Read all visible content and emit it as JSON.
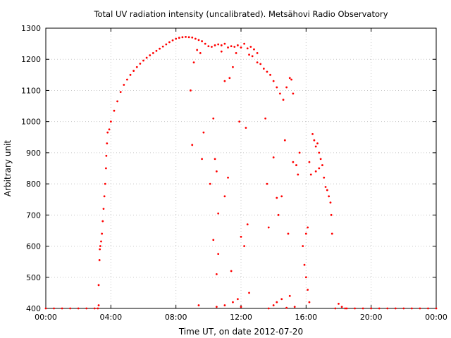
{
  "chart_data": {
    "type": "scatter",
    "title": "Total UV radiation intensity (uncalibrated). Metsähovi Radio Observatory",
    "xlabel": "Time UT, on date 2012-07-20",
    "ylabel": "Arbitrary unit",
    "xlim": [
      0,
      24
    ],
    "ylim": [
      400,
      1300
    ],
    "x_unit": "hours UT",
    "xticks": [
      0,
      4,
      8,
      12,
      16,
      20,
      24
    ],
    "xtick_labels": [
      "00:00",
      "04:00",
      "08:00",
      "12:00",
      "16:00",
      "20:00",
      "00:00"
    ],
    "yticks": [
      400,
      500,
      600,
      700,
      800,
      900,
      1000,
      1100,
      1200,
      1300
    ],
    "ytick_labels": [
      "400",
      "500",
      "600",
      "700",
      "800",
      "900",
      "1000",
      "1100",
      "1200",
      "1300"
    ],
    "grid": true,
    "legend": "none",
    "marker_color": "#ff0000",
    "series": [
      {
        "points": [
          [
            0.0,
            400
          ],
          [
            0.5,
            400
          ],
          [
            1.0,
            400
          ],
          [
            1.5,
            400
          ],
          [
            2.0,
            400
          ],
          [
            2.5,
            400
          ],
          [
            3.0,
            400
          ],
          [
            3.2,
            400
          ],
          [
            3.25,
            410
          ],
          [
            3.25,
            475
          ],
          [
            3.3,
            555
          ],
          [
            3.32,
            590
          ],
          [
            3.35,
            600
          ],
          [
            3.4,
            615
          ],
          [
            3.45,
            640
          ],
          [
            3.5,
            680
          ],
          [
            3.55,
            720
          ],
          [
            3.6,
            760
          ],
          [
            3.65,
            800
          ],
          [
            3.7,
            850
          ],
          [
            3.72,
            890
          ],
          [
            3.76,
            930
          ],
          [
            3.8,
            965
          ],
          [
            3.9,
            975
          ],
          [
            4.0,
            1000
          ],
          [
            4.2,
            1035
          ],
          [
            4.4,
            1065
          ],
          [
            4.6,
            1095
          ],
          [
            4.8,
            1118
          ],
          [
            5.0,
            1135
          ],
          [
            5.2,
            1150
          ],
          [
            5.4,
            1163
          ],
          [
            5.6,
            1175
          ],
          [
            5.8,
            1186
          ],
          [
            6.0,
            1196
          ],
          [
            6.2,
            1205
          ],
          [
            6.4,
            1213
          ],
          [
            6.6,
            1220
          ],
          [
            6.8,
            1227
          ],
          [
            7.0,
            1234
          ],
          [
            7.2,
            1241
          ],
          [
            7.4,
            1248
          ],
          [
            7.6,
            1255
          ],
          [
            7.8,
            1261
          ],
          [
            8.0,
            1266
          ],
          [
            8.2,
            1269
          ],
          [
            8.4,
            1271
          ],
          [
            8.6,
            1272
          ],
          [
            8.8,
            1271
          ],
          [
            9.0,
            1270
          ],
          [
            9.2,
            1266
          ],
          [
            9.4,
            1262
          ],
          [
            9.6,
            1258
          ],
          [
            9.8,
            1250
          ],
          [
            10.0,
            1242
          ],
          [
            10.2,
            1240
          ],
          [
            10.4,
            1245
          ],
          [
            10.6,
            1248
          ],
          [
            10.8,
            1245
          ],
          [
            11.0,
            1250
          ],
          [
            11.2,
            1238
          ],
          [
            11.4,
            1242
          ],
          [
            11.6,
            1240
          ],
          [
            11.8,
            1245
          ],
          [
            12.0,
            1238
          ],
          [
            12.2,
            1250
          ],
          [
            12.4,
            1235
          ],
          [
            12.6,
            1240
          ],
          [
            12.8,
            1232
          ],
          [
            13.0,
            1220
          ],
          [
            13.2,
            1185
          ],
          [
            13.4,
            1170
          ],
          [
            13.6,
            1160
          ],
          [
            13.8,
            1150
          ],
          [
            14.0,
            1130
          ],
          [
            14.2,
            1110
          ],
          [
            14.4,
            1090
          ],
          [
            14.6,
            1070
          ],
          [
            14.8,
            1110
          ],
          [
            15.0,
            1140
          ],
          [
            15.1,
            1135
          ],
          [
            15.2,
            1090
          ],
          [
            16.4,
            960
          ],
          [
            16.5,
            940
          ],
          [
            16.6,
            920
          ],
          [
            16.7,
            930
          ],
          [
            16.8,
            900
          ],
          [
            16.9,
            880
          ],
          [
            17.0,
            860
          ],
          [
            17.1,
            820
          ],
          [
            17.2,
            790
          ],
          [
            17.3,
            780
          ],
          [
            17.4,
            760
          ],
          [
            17.5,
            740
          ],
          [
            17.55,
            700
          ],
          [
            17.6,
            640
          ],
          [
            8.9,
            1100
          ],
          [
            9.1,
            1190
          ],
          [
            9.3,
            1230
          ],
          [
            9.5,
            1220
          ],
          [
            9.6,
            880
          ],
          [
            9.7,
            965
          ],
          [
            10.3,
            1010
          ],
          [
            10.4,
            880
          ],
          [
            10.5,
            840
          ],
          [
            10.6,
            705
          ],
          [
            10.6,
            575
          ],
          [
            10.8,
            1225
          ],
          [
            11.0,
            1130
          ],
          [
            11.3,
            1140
          ],
          [
            11.5,
            1175
          ],
          [
            11.7,
            1220
          ],
          [
            11.9,
            1000
          ],
          [
            12.3,
            980
          ],
          [
            12.5,
            1215
          ],
          [
            12.7,
            1210
          ],
          [
            13.0,
            1190
          ],
          [
            13.5,
            1010
          ],
          [
            13.6,
            800
          ],
          [
            13.7,
            660
          ],
          [
            14.0,
            885
          ],
          [
            14.2,
            755
          ],
          [
            14.3,
            700
          ],
          [
            14.5,
            760
          ],
          [
            14.7,
            940
          ],
          [
            14.9,
            640
          ],
          [
            15.2,
            870
          ],
          [
            15.4,
            860
          ],
          [
            15.5,
            830
          ],
          [
            15.6,
            900
          ],
          [
            15.8,
            600
          ],
          [
            16.0,
            640
          ],
          [
            16.1,
            660
          ],
          [
            16.2,
            870
          ],
          [
            16.3,
            830
          ],
          [
            16.6,
            840
          ],
          [
            16.8,
            850
          ],
          [
            9.0,
            925
          ],
          [
            9.4,
            410
          ],
          [
            10.1,
            800
          ],
          [
            10.3,
            620
          ],
          [
            10.5,
            510
          ],
          [
            11.0,
            760
          ],
          [
            11.2,
            820
          ],
          [
            11.4,
            520
          ],
          [
            11.5,
            420
          ],
          [
            11.8,
            430
          ],
          [
            12.0,
            630
          ],
          [
            12.2,
            600
          ],
          [
            12.4,
            670
          ],
          [
            12.5,
            450
          ],
          [
            13.7,
            400
          ],
          [
            14.0,
            410
          ],
          [
            14.2,
            420
          ],
          [
            14.5,
            430
          ],
          [
            15.0,
            440
          ],
          [
            15.9,
            540
          ],
          [
            16.0,
            500
          ],
          [
            16.1,
            460
          ],
          [
            16.2,
            420
          ],
          [
            10.5,
            405
          ],
          [
            11.0,
            410
          ],
          [
            12.0,
            405
          ],
          [
            14.8,
            402
          ],
          [
            15.3,
            405
          ],
          [
            17.8,
            400
          ],
          [
            18.0,
            415
          ],
          [
            18.2,
            405
          ],
          [
            18.4,
            400
          ],
          [
            18.5,
            400
          ],
          [
            19.0,
            400
          ],
          [
            19.5,
            400
          ],
          [
            20.0,
            400
          ],
          [
            20.5,
            400
          ],
          [
            21.0,
            400
          ],
          [
            21.5,
            400
          ],
          [
            22.0,
            400
          ],
          [
            22.5,
            400
          ],
          [
            23.0,
            400
          ],
          [
            23.5,
            400
          ],
          [
            24.0,
            400
          ]
        ]
      }
    ]
  }
}
